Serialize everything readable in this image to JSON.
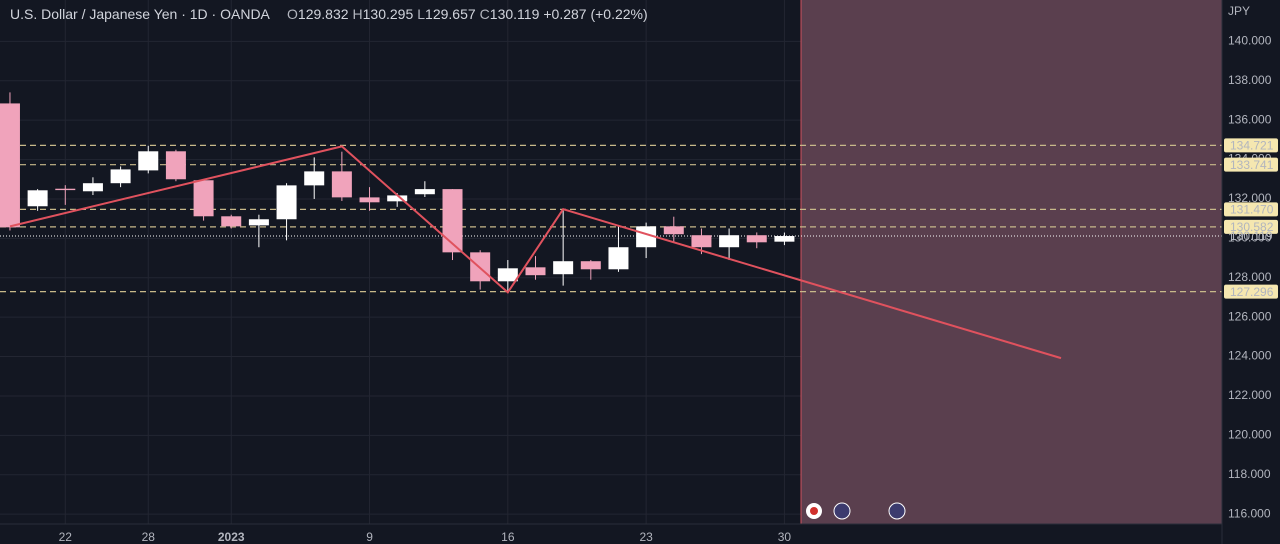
{
  "header": {
    "title": "U.S. Dollar / Japanese Yen · 1D · OANDA",
    "ohlc": [
      {
        "label": "O",
        "value": "129.832"
      },
      {
        "label": "H",
        "value": "130.295"
      },
      {
        "label": "L",
        "value": "129.657"
      },
      {
        "label": "C",
        "value": "130.119"
      }
    ],
    "change": "+0.287 (+0.22%)"
  },
  "chart_data": {
    "type": "candlestick",
    "categories": [
      null,
      null,
      "22",
      null,
      null,
      "28",
      null,
      null,
      "2023",
      null,
      null,
      null,
      null,
      "9",
      null,
      null,
      null,
      null,
      "16",
      null,
      null,
      null,
      null,
      "23",
      null,
      null,
      null,
      null,
      "30"
    ],
    "open": [
      136.85,
      131.63,
      132.52,
      132.39,
      132.8,
      133.45,
      134.42,
      132.95,
      131.12,
      130.66,
      130.97,
      132.69,
      133.4,
      132.08,
      131.88,
      132.24,
      132.5,
      129.29,
      127.82,
      128.53,
      128.18,
      128.84,
      128.43,
      129.55,
      130.61,
      130.16,
      129.55,
      130.16,
      129.832
    ],
    "high": [
      137.41,
      132.5,
      132.7,
      133.1,
      133.65,
      134.7,
      134.5,
      133.0,
      131.2,
      131.2,
      132.8,
      134.11,
      134.4,
      132.6,
      132.3,
      132.9,
      132.5,
      129.4,
      128.9,
      129.1,
      131.47,
      128.9,
      130.6,
      130.8,
      131.1,
      130.5,
      130.5,
      130.3,
      130.295
    ],
    "low": [
      130.4,
      131.4,
      131.7,
      132.2,
      132.6,
      133.3,
      132.9,
      130.9,
      130.5,
      129.55,
      129.9,
      132.0,
      131.9,
      131.4,
      131.6,
      132.1,
      128.9,
      127.4,
      127.3,
      127.9,
      127.6,
      127.9,
      128.3,
      129.0,
      129.8,
      129.2,
      128.9,
      129.5,
      129.657
    ],
    "close": [
      130.56,
      132.44,
      132.45,
      132.8,
      133.5,
      134.42,
      133.0,
      131.12,
      130.61,
      130.97,
      132.69,
      133.4,
      132.08,
      131.83,
      132.18,
      132.5,
      129.29,
      127.82,
      128.48,
      128.13,
      128.84,
      128.43,
      129.55,
      130.61,
      130.21,
      129.55,
      130.16,
      129.8,
      130.119
    ],
    "up_color": "#ffffff",
    "down_color": "#f0a3bb",
    "y_axis_label": "JPY",
    "ylim": [
      115.5,
      142.1
    ],
    "xlim": [
      -0.36,
      43.82
    ],
    "yticks": [
      {
        "value": 116,
        "label": "116.000"
      },
      {
        "value": 118,
        "label": "118.000"
      },
      {
        "value": 120,
        "label": "120.000"
      },
      {
        "value": 122,
        "label": "122.000"
      },
      {
        "value": 124,
        "label": "124.000"
      },
      {
        "value": 126,
        "label": "126.000"
      },
      {
        "value": 128,
        "label": "128.000"
      },
      {
        "value": 130,
        "label": "130.000"
      },
      {
        "value": 132,
        "label": "132.000"
      },
      {
        "value": 134,
        "label": "134.000"
      },
      {
        "value": 136,
        "label": "136.000"
      },
      {
        "value": 138,
        "label": "138.000"
      },
      {
        "value": 140,
        "label": "140.000"
      }
    ],
    "levels": [
      {
        "value": 134.721,
        "label": "134.721"
      },
      {
        "value": 133.741,
        "label": "133.741"
      },
      {
        "value": 131.47,
        "label": "131.470"
      },
      {
        "value": 130.582,
        "label": "130.582"
      },
      {
        "value": 127.296,
        "label": "127.296"
      }
    ],
    "last_price": {
      "value": 130.119,
      "label": "130.119"
    },
    "zigzag": {
      "x": [
        0,
        12,
        18,
        20,
        38.0
      ],
      "y": [
        130.61,
        134.67,
        127.26,
        131.48,
        123.92
      ],
      "color": "#e0525e"
    },
    "grid": true
  }
}
